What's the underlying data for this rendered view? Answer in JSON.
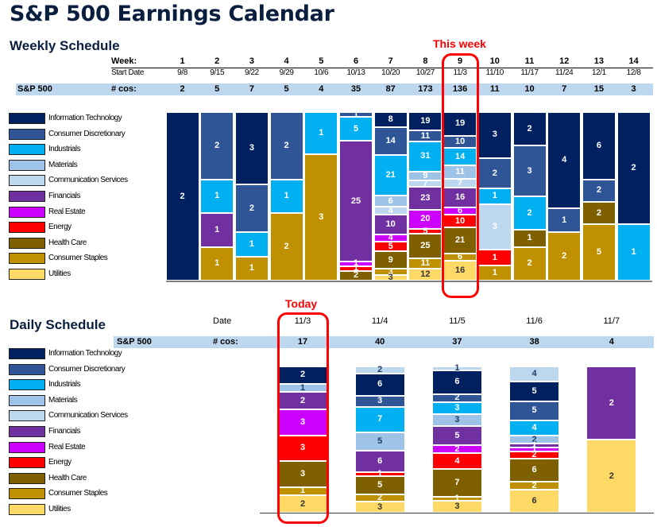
{
  "title": "S&P 500 Earnings Calendar",
  "sectors": [
    {
      "key": "it",
      "name": "Information Technology",
      "color": "#002060",
      "text": "#ffffff"
    },
    {
      "key": "cd",
      "name": "Consumer Discretionary",
      "color": "#2f5597",
      "text": "#ffffff"
    },
    {
      "key": "ind",
      "name": "Industrials",
      "color": "#00b0f0",
      "text": "#ffffff"
    },
    {
      "key": "mat",
      "name": "Materials",
      "color": "#9dc3e6",
      "text": "#ffffff"
    },
    {
      "key": "comm",
      "name": "Communication Services",
      "color": "#bdd7ee",
      "text": "#ffffff"
    },
    {
      "key": "fin",
      "name": "Financials",
      "color": "#7030a0",
      "text": "#ffffff"
    },
    {
      "key": "re",
      "name": "Real Estate",
      "color": "#cc00ff",
      "text": "#ffffff"
    },
    {
      "key": "energy",
      "name": "Energy",
      "color": "#ff0000",
      "text": "#ffffff"
    },
    {
      "key": "hc",
      "name": "Health Care",
      "color": "#7f6000",
      "text": "#ffffff"
    },
    {
      "key": "cs",
      "name": "Consumer Staples",
      "color": "#bf9000",
      "text": "#ffffff"
    },
    {
      "key": "util",
      "name": "Utilities",
      "color": "#ffd966",
      "text": "#000000"
    }
  ],
  "weekly": {
    "title": "Weekly Schedule",
    "week_label": "Week:",
    "start_date_label": "Start Date",
    "index_label": "S&P 500",
    "count_label": "# cos:",
    "callout": {
      "label": "This week",
      "week": "9"
    }
  },
  "daily": {
    "title": "Daily Schedule",
    "date_label": "Date",
    "index_label": "S&P 500",
    "count_label": "# cos:",
    "callout": {
      "label": "Today",
      "date": "11/3"
    }
  },
  "chart_data": [
    {
      "type": "bar",
      "stacked": "100%",
      "title": "Weekly Schedule",
      "categories": [
        "1",
        "2",
        "3",
        "4",
        "5",
        "6",
        "7",
        "8",
        "9",
        "10",
        "11",
        "12",
        "13",
        "14"
      ],
      "start_dates": [
        "9/8",
        "9/15",
        "9/22",
        "9/29",
        "10/6",
        "10/13",
        "10/20",
        "10/27",
        "11/3",
        "11/10",
        "11/17",
        "11/24",
        "12/1",
        "12/8"
      ],
      "totals": [
        2,
        5,
        7,
        5,
        4,
        35,
        87,
        173,
        136,
        11,
        10,
        7,
        15,
        3
      ],
      "stack_order_top_to_bottom": [
        "it",
        "cd",
        "ind",
        "mat",
        "comm",
        "fin",
        "re",
        "energy",
        "hc",
        "cs",
        "util"
      ],
      "series": [
        {
          "name": "Information Technology",
          "key": "it",
          "values": [
            2,
            0,
            3,
            0,
            0,
            0,
            8,
            19,
            19,
            3,
            2,
            4,
            6,
            2
          ]
        },
        {
          "name": "Consumer Discretionary",
          "key": "cd",
          "values": [
            0,
            2,
            2,
            2,
            0,
            1,
            14,
            11,
            10,
            2,
            3,
            1,
            2,
            0
          ]
        },
        {
          "name": "Industrials",
          "key": "ind",
          "values": [
            0,
            1,
            1,
            1,
            1,
            5,
            21,
            31,
            14,
            1,
            2,
            0,
            0,
            1
          ]
        },
        {
          "name": "Materials",
          "key": "mat",
          "values": [
            0,
            0,
            0,
            0,
            0,
            0,
            6,
            9,
            11,
            0,
            0,
            0,
            0,
            0
          ]
        },
        {
          "name": "Communication Services",
          "key": "comm",
          "values": [
            0,
            0,
            0,
            0,
            0,
            0,
            4,
            7,
            7,
            3,
            0,
            0,
            0,
            0
          ]
        },
        {
          "name": "Financials",
          "key": "fin",
          "values": [
            0,
            1,
            0,
            0,
            0,
            25,
            10,
            23,
            16,
            0,
            0,
            0,
            0,
            0
          ]
        },
        {
          "name": "Real Estate",
          "key": "re",
          "values": [
            0,
            0,
            0,
            0,
            0,
            1,
            4,
            20,
            6,
            0,
            0,
            0,
            0,
            0
          ]
        },
        {
          "name": "Energy",
          "key": "energy",
          "values": [
            0,
            0,
            0,
            0,
            0,
            1,
            5,
            5,
            10,
            1,
            0,
            0,
            0,
            0
          ]
        },
        {
          "name": "Health Care",
          "key": "hc",
          "values": [
            0,
            0,
            0,
            0,
            0,
            2,
            9,
            25,
            21,
            0,
            1,
            0,
            2,
            0
          ]
        },
        {
          "name": "Consumer Staples",
          "key": "cs",
          "values": [
            0,
            1,
            1,
            2,
            3,
            0,
            3,
            11,
            6,
            1,
            2,
            2,
            5,
            0
          ]
        },
        {
          "name": "Utilities",
          "key": "util",
          "values": [
            0,
            0,
            0,
            0,
            0,
            0,
            3,
            12,
            16,
            0,
            0,
            0,
            0,
            0
          ]
        }
      ],
      "legend": "left",
      "highlight_category": "9"
    },
    {
      "type": "bar",
      "stacked": "100%",
      "title": "Daily Schedule",
      "categories": [
        "11/3",
        "11/4",
        "11/5",
        "11/6",
        "11/7"
      ],
      "totals": [
        17,
        40,
        37,
        38,
        4
      ],
      "stack_order_top_to_bottom": [
        "comm",
        "it",
        "cd",
        "ind",
        "mat",
        "fin",
        "re",
        "energy",
        "hc",
        "cs",
        "util"
      ],
      "series": [
        {
          "name": "Information Technology",
          "key": "it",
          "values": [
            2,
            6,
            6,
            5,
            0
          ]
        },
        {
          "name": "Consumer Discretionary",
          "key": "cd",
          "values": [
            0,
            3,
            2,
            5,
            0
          ]
        },
        {
          "name": "Industrials",
          "key": "ind",
          "values": [
            0,
            7,
            3,
            4,
            0
          ]
        },
        {
          "name": "Materials",
          "key": "mat",
          "values": [
            1,
            5,
            3,
            2,
            0
          ]
        },
        {
          "name": "Communication Services",
          "key": "comm",
          "values": [
            0,
            2,
            1,
            4,
            0
          ]
        },
        {
          "name": "Financials",
          "key": "fin",
          "values": [
            2,
            6,
            5,
            1,
            2
          ]
        },
        {
          "name": "Real Estate",
          "key": "re",
          "values": [
            3,
            0,
            2,
            1,
            0
          ]
        },
        {
          "name": "Energy",
          "key": "energy",
          "values": [
            3,
            1,
            4,
            2,
            0
          ]
        },
        {
          "name": "Health Care",
          "key": "hc",
          "values": [
            3,
            5,
            7,
            6,
            0
          ]
        },
        {
          "name": "Consumer Staples",
          "key": "cs",
          "values": [
            1,
            2,
            1,
            2,
            0
          ]
        },
        {
          "name": "Utilities",
          "key": "util",
          "values": [
            2,
            3,
            3,
            6,
            2
          ]
        }
      ],
      "legend": "left",
      "highlight_category": "11/3"
    }
  ]
}
